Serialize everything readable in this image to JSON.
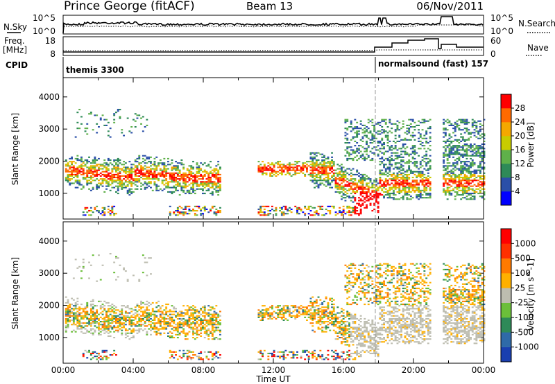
{
  "header": {
    "station": "Prince George (fitACF)",
    "beam": "Beam 13",
    "date": "06/Nov/2011"
  },
  "nsky_panel": {
    "left_label": "N.Sky",
    "right_label": "N.Search",
    "left_ticks": [
      "10^5",
      "10^0"
    ],
    "right_ticks": [
      "10^5",
      "10^0"
    ]
  },
  "freq_panel": {
    "left_label_1": "Freq.",
    "left_label_2": "[MHz]",
    "right_label": "Nave",
    "left_ticks": [
      "18",
      "8"
    ],
    "right_ticks": [
      "60",
      "0"
    ]
  },
  "cpid_panel": {
    "label": "CPID",
    "programs": [
      {
        "name": "themis 3300",
        "start_hour": 0,
        "end_hour": 18
      },
      {
        "name": "normalsound (fast) 157",
        "start_hour": 18,
        "end_hour": 24
      }
    ]
  },
  "chart_data": [
    {
      "type": "heatmap",
      "name": "power",
      "ylabel": "Slant Range [km]",
      "xlabel": "",
      "ylim": [
        200,
        4600
      ],
      "xlim": [
        0,
        24
      ],
      "yticks": [
        "1000",
        "2000",
        "3000",
        "4000"
      ],
      "colorbar_label": "Power [dB]",
      "colorbar_ticks": [
        "28",
        "24",
        "20",
        "16",
        "12",
        "8",
        "4"
      ],
      "colorbar_colors": [
        "#0000ff",
        "#2a4fa8",
        "#2e8a58",
        "#5fb04a",
        "#c8cc00",
        "#f4a800",
        "#ff6a00",
        "#ff0000"
      ]
    },
    {
      "type": "heatmap",
      "name": "velocity",
      "ylabel": "Slant Range [km]",
      "xlabel": "Time UT",
      "ylim": [
        200,
        4600
      ],
      "xlim": [
        0,
        24
      ],
      "yticks": [
        "1000",
        "2000",
        "3000",
        "4000"
      ],
      "xticks": [
        "00:00",
        "04:00",
        "08:00",
        "12:00",
        "16:00",
        "20:00",
        "00:00"
      ],
      "colorbar_label": "Velocity [m s^-1]",
      "colorbar_ticks": [
        "1000",
        "500",
        "100",
        "25",
        "-25",
        "-100",
        "-500",
        "-1000"
      ],
      "colorbar_colors": [
        "#1a3fb0",
        "#2f6aa8",
        "#2e8a58",
        "#6bbf3a",
        "#bdbdb0",
        "#ffb000",
        "#ff7a00",
        "#ff3000",
        "#ff0000"
      ]
    }
  ]
}
